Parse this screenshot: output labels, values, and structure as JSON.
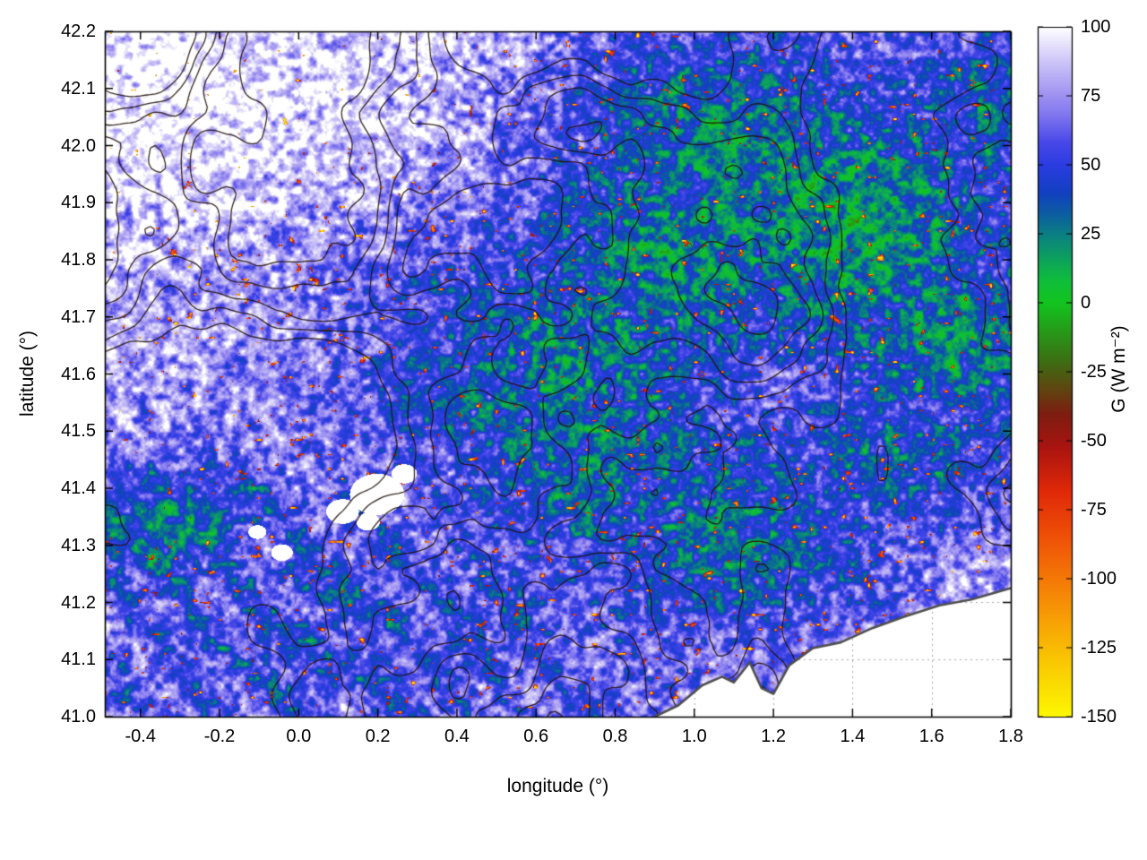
{
  "page": {
    "background": "#ffffff"
  },
  "chart_data": {
    "type": "heatmap",
    "title": "",
    "xlabel": "longitude (°)",
    "ylabel": "latitude (°)",
    "x_range": [
      -0.49,
      1.8
    ],
    "y_range": [
      41.0,
      42.2
    ],
    "x_ticks": [
      -0.4,
      -0.2,
      0.0,
      0.2,
      0.4,
      0.6,
      0.8,
      1.0,
      1.2,
      1.4,
      1.6,
      1.8
    ],
    "x_tick_labels": [
      "-0.4",
      "-0.2",
      "0.0",
      "0.2",
      "0.4",
      "0.6",
      "0.8",
      "1.0",
      "1.2",
      "1.4",
      "1.6",
      "1.8"
    ],
    "y_ticks": [
      41.0,
      41.1,
      41.2,
      41.3,
      41.4,
      41.5,
      41.6,
      41.7,
      41.8,
      41.9,
      42.0,
      42.1,
      42.2
    ],
    "y_tick_labels": [
      "41.0",
      "41.1",
      "41.2",
      "41.3",
      "41.4",
      "41.5",
      "41.6",
      "41.7",
      "41.8",
      "41.9",
      "42.0",
      "42.1",
      "42.2"
    ],
    "grid": {
      "style": "dotted",
      "color": "#a8a8a8",
      "visible_over": "no-data sea region only"
    },
    "colorbar": {
      "label": "G (W m⁻²)",
      "min": -150,
      "max": 100,
      "ticks": [
        100,
        75,
        50,
        25,
        0,
        -25,
        -50,
        -75,
        -100,
        -125,
        -150
      ],
      "tick_labels": [
        "100",
        "75",
        "50",
        "25",
        "0",
        "-25",
        "-50",
        "-75",
        "-100",
        "-125",
        "-150"
      ],
      "palette_stops": [
        [
          -150,
          "#fdf800"
        ],
        [
          -130,
          "#f9c802"
        ],
        [
          -105,
          "#f58606"
        ],
        [
          -85,
          "#ef5107"
        ],
        [
          -68,
          "#e02808"
        ],
        [
          -52,
          "#a81410"
        ],
        [
          -40,
          "#7c1d10"
        ],
        [
          -30,
          "#5c4a10"
        ],
        [
          -22,
          "#3f6a12"
        ],
        [
          -12,
          "#2a9218"
        ],
        [
          0,
          "#12c41e"
        ],
        [
          8,
          "#0fbe3a"
        ],
        [
          18,
          "#0c9a66"
        ],
        [
          25,
          "#0a7f83"
        ],
        [
          32,
          "#0c5f9e"
        ],
        [
          40,
          "#1140c0"
        ],
        [
          50,
          "#2b3ce0"
        ],
        [
          58,
          "#4747e8"
        ],
        [
          68,
          "#7f75ee"
        ],
        [
          78,
          "#a89df2"
        ],
        [
          88,
          "#cfc7f8"
        ],
        [
          100,
          "#ffffff"
        ]
      ]
    },
    "overlay": {
      "contour_color": "rgba(32,16,8,0.9)",
      "contour_levels": [
        0.4,
        0.46,
        0.52,
        0.58,
        0.64
      ],
      "coastline_color": "#4f4f4f",
      "coastline": [
        [
          0.9,
          41.0
        ],
        [
          0.96,
          41.02
        ],
        [
          1.02,
          41.055
        ],
        [
          1.07,
          41.07
        ],
        [
          1.1,
          41.06
        ],
        [
          1.14,
          41.095
        ],
        [
          1.17,
          41.05
        ],
        [
          1.2,
          41.04
        ],
        [
          1.24,
          41.09
        ],
        [
          1.3,
          41.12
        ],
        [
          1.37,
          41.13
        ],
        [
          1.45,
          41.155
        ],
        [
          1.53,
          41.175
        ],
        [
          1.62,
          41.195
        ],
        [
          1.7,
          41.205
        ],
        [
          1.8,
          41.225
        ]
      ]
    },
    "field_model": {
      "base_high": 82,
      "blob_depth": 64,
      "speckle_amp": 88,
      "red_speck_threshold": 0.815,
      "green_blobs": [
        [
          0.5,
          0.48,
          0.24,
          0.8
        ],
        [
          0.63,
          0.33,
          0.2,
          0.85
        ],
        [
          0.68,
          0.16,
          0.18,
          0.8
        ],
        [
          0.82,
          0.28,
          0.22,
          0.9
        ],
        [
          0.94,
          0.45,
          0.18,
          0.8
        ],
        [
          0.56,
          0.62,
          0.18,
          0.75
        ],
        [
          0.7,
          0.73,
          0.2,
          0.8
        ],
        [
          0.86,
          0.62,
          0.16,
          0.7
        ],
        [
          0.06,
          0.73,
          0.1,
          0.85
        ],
        [
          0.14,
          0.69,
          0.07,
          0.65
        ],
        [
          1.0,
          0.12,
          0.15,
          0.7
        ],
        [
          1.0,
          0.34,
          0.18,
          0.6
        ],
        [
          0.99,
          0.6,
          0.14,
          0.55
        ],
        [
          0.25,
          0.88,
          0.28,
          0.4
        ],
        [
          0.46,
          0.86,
          0.24,
          0.35
        ],
        [
          0.62,
          0.92,
          0.26,
          0.35
        ],
        [
          0.33,
          0.97,
          0.3,
          0.35
        ]
      ],
      "no_data_patches": [
        [
          0.3,
          0.675,
          0.03
        ],
        [
          0.262,
          0.7,
          0.018
        ],
        [
          0.33,
          0.645,
          0.014
        ],
        [
          0.29,
          0.715,
          0.013
        ],
        [
          0.195,
          0.76,
          0.012
        ],
        [
          0.168,
          0.73,
          0.01
        ]
      ]
    }
  }
}
